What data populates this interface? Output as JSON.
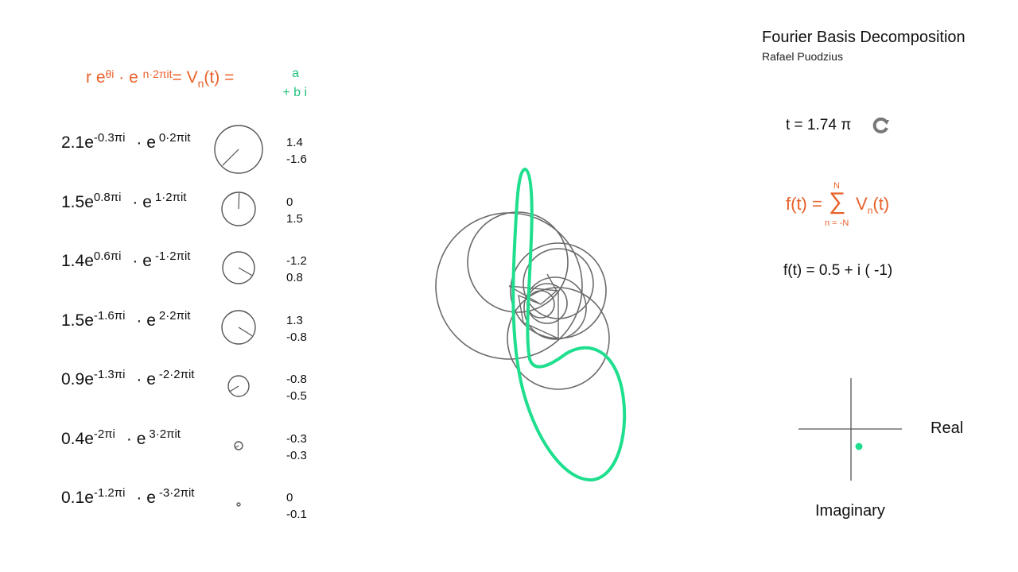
{
  "header": {
    "r": "r e",
    "theta_exp": "θi",
    "dot": " · e ",
    "n_exp": "n·2πit",
    "equals": "= V",
    "n_sub": "n",
    "t_part": "(t) =",
    "a": "a",
    "bi": "+ b i"
  },
  "terms": [
    {
      "coef": "2.1e",
      "phase": "-0.3πi",
      "freq": "0·2πit",
      "a": "1.4",
      "b": "-1.6",
      "angle": 135,
      "radius": 30
    },
    {
      "coef": "1.5e",
      "phase": "0.8πi",
      "freq": "1·2πit",
      "a": "0",
      "b": "1.5",
      "angle": -88,
      "radius": 21
    },
    {
      "coef": "1.4e",
      "phase": "0.6πi",
      "freq": "-1·2πit",
      "a": "-1.2",
      "b": "0.8",
      "angle": 30,
      "radius": 20
    },
    {
      "coef": "1.5e",
      "phase": "-1.6πi",
      "freq": "2·2πit",
      "a": "1.3",
      "b": "-0.8",
      "angle": 32,
      "radius": 21
    },
    {
      "coef": "0.9e",
      "phase": "-1.3πi",
      "freq": "-2·2πit",
      "a": "-0.8",
      "b": "-0.5",
      "angle": 148,
      "radius": 13
    },
    {
      "coef": "0.4e",
      "phase": "-2πi",
      "freq": "3·2πit",
      "a": "-0.3",
      "b": "-0.3",
      "angle": 150,
      "radius": 5
    },
    {
      "coef": "0.1e",
      "phase": "-1.2πi",
      "freq": "-3·2πit",
      "a": "0",
      "b": "-0.1",
      "angle": 120,
      "radius": 2
    }
  ],
  "dot_e": "· e",
  "app": {
    "title": "Fourier Basis Decomposition",
    "author": "Rafael Puodzius"
  },
  "time": {
    "label": "t = 1.74 π",
    "reload_icon": "reload-icon"
  },
  "sum": {
    "f": "f(t) =",
    "sigma": "∑",
    "top": "N",
    "bottom": "n = -N",
    "v": "V",
    "sub": "n",
    "t": "(t)"
  },
  "f_value": "f(t) =  0.5 + i (  -1)",
  "axes": {
    "real": "Real",
    "imaginary": "Imaginary",
    "point": {
      "re": 0.5,
      "im": -1
    }
  },
  "colors": {
    "accent": "#e8622c",
    "curve": "#1fdf8f",
    "circle": "#6a6a6a"
  }
}
